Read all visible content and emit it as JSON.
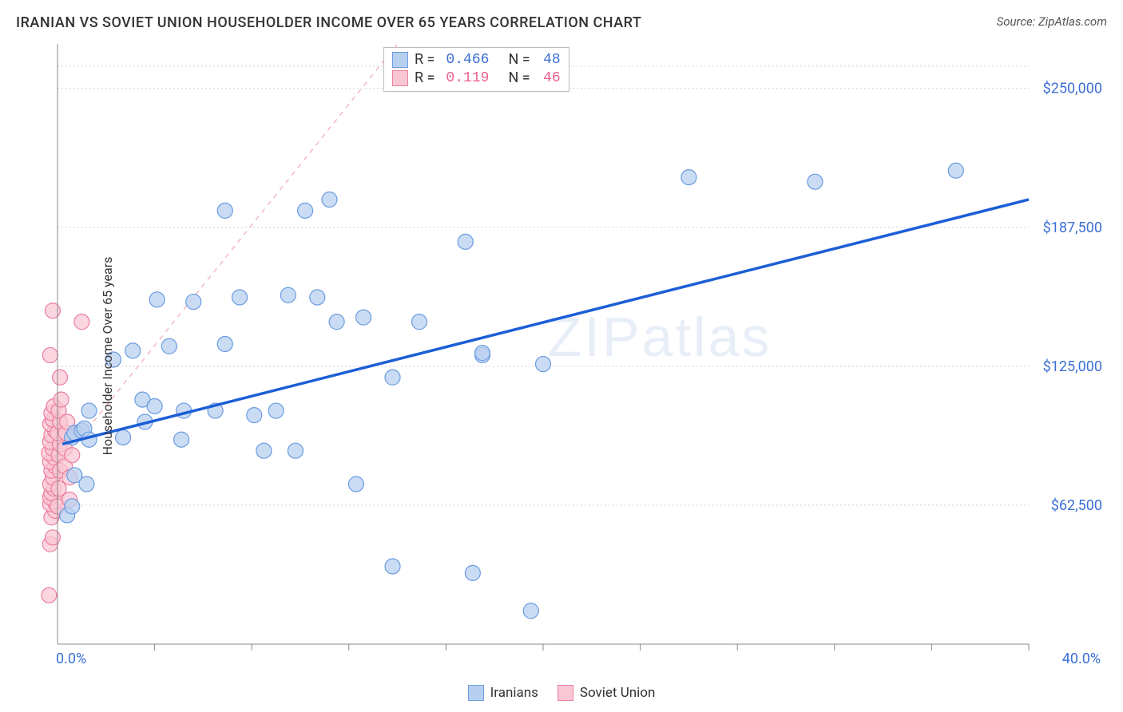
{
  "title": "IRANIAN VS SOVIET UNION HOUSEHOLDER INCOME OVER 65 YEARS CORRELATION CHART",
  "source_label": "Source: ZipAtlas.com",
  "watermark": "ZIPatlas",
  "y_axis_label": "Householder Income Over 65 years",
  "chart": {
    "type": "scatter",
    "xlim": [
      0,
      40
    ],
    "ylim": [
      0,
      270000
    ],
    "x_min_label": "0.0%",
    "x_max_label": "40.0%",
    "x_ticks": [
      4,
      8,
      12,
      16,
      20,
      24,
      28,
      32,
      36,
      40
    ],
    "y_gridlines": [
      62500,
      125000,
      187500,
      250000,
      260000
    ],
    "y_tick_labels": [
      {
        "v": 62500,
        "label": "$62,500"
      },
      {
        "v": 125000,
        "label": "$125,000"
      },
      {
        "v": 187500,
        "label": "$187,500"
      },
      {
        "v": 250000,
        "label": "$250,000"
      }
    ],
    "background_color": "#ffffff",
    "grid_color": "#d0d0d0",
    "marker_radius": 9.5,
    "series": {
      "blue": {
        "name": "Iranians",
        "fill": "#b8d0f0",
        "stroke": "#6a9be0",
        "R": "0.466",
        "N": "48",
        "trend": {
          "x1": 0.2,
          "y1": 90000,
          "x2": 40,
          "y2": 200000,
          "color": "#1b5ed6",
          "width": 3.5
        },
        "points": [
          [
            0.4,
            58000
          ],
          [
            0.6,
            62000
          ],
          [
            0.7,
            76000
          ],
          [
            0.6,
            93000
          ],
          [
            0.7,
            95000
          ],
          [
            1.0,
            96000
          ],
          [
            1.1,
            97000
          ],
          [
            1.3,
            92000
          ],
          [
            1.2,
            72000
          ],
          [
            1.3,
            105000
          ],
          [
            2.3,
            128000
          ],
          [
            2.7,
            93000
          ],
          [
            3.1,
            132000
          ],
          [
            3.6,
            100000
          ],
          [
            3.5,
            110000
          ],
          [
            4.0,
            107000
          ],
          [
            4.6,
            134000
          ],
          [
            4.1,
            155000
          ],
          [
            5.1,
            92000
          ],
          [
            5.2,
            105000
          ],
          [
            5.6,
            154000
          ],
          [
            6.5,
            105000
          ],
          [
            6.9,
            135000
          ],
          [
            6.9,
            195000
          ],
          [
            7.5,
            156000
          ],
          [
            8.1,
            103000
          ],
          [
            8.5,
            87000
          ],
          [
            9.0,
            105000
          ],
          [
            9.5,
            157000
          ],
          [
            9.8,
            87000
          ],
          [
            10.2,
            195000
          ],
          [
            10.7,
            156000
          ],
          [
            11.2,
            200000
          ],
          [
            11.5,
            145000
          ],
          [
            12.3,
            72000
          ],
          [
            12.6,
            147000
          ],
          [
            13.8,
            35000
          ],
          [
            13.8,
            120000
          ],
          [
            14.9,
            145000
          ],
          [
            16.8,
            181000
          ],
          [
            17.1,
            32000
          ],
          [
            17.5,
            130000
          ],
          [
            17.5,
            131000
          ],
          [
            19.5,
            15000
          ],
          [
            20.0,
            126000
          ],
          [
            26.0,
            210000
          ],
          [
            31.2,
            208000
          ],
          [
            37.0,
            213000
          ]
        ]
      },
      "pink": {
        "name": "Soviet Union",
        "fill": "#f9c7d4",
        "stroke": "#ec7ea0",
        "R": "0.119",
        "N": "46",
        "trend": {
          "x1": 0.0,
          "y1": 80000,
          "x2": 14,
          "y2": 270000,
          "color": "#f5b6c5",
          "width": 1.5,
          "dash": "6 6"
        },
        "points": [
          [
            -0.35,
            22000
          ],
          [
            -0.3,
            45000
          ],
          [
            -0.2,
            48000
          ],
          [
            -0.25,
            57000
          ],
          [
            -0.1,
            60000
          ],
          [
            -0.3,
            63000
          ],
          [
            -0.1,
            64000
          ],
          [
            -0.3,
            66000
          ],
          [
            -0.25,
            68000
          ],
          [
            -0.15,
            70000
          ],
          [
            -0.3,
            72000
          ],
          [
            -0.2,
            75000
          ],
          [
            -0.25,
            78000
          ],
          [
            -0.1,
            80000
          ],
          [
            -0.3,
            82000
          ],
          [
            -0.15,
            84000
          ],
          [
            -0.35,
            86000
          ],
          [
            -0.2,
            88000
          ],
          [
            -0.3,
            91000
          ],
          [
            -0.25,
            94000
          ],
          [
            -0.1,
            96000
          ],
          [
            -0.3,
            99000
          ],
          [
            -0.2,
            101000
          ],
          [
            -0.25,
            104000
          ],
          [
            -0.15,
            107000
          ],
          [
            -0.3,
            130000
          ],
          [
            -0.2,
            150000
          ],
          [
            0.0,
            62000
          ],
          [
            0.05,
            70000
          ],
          [
            0.1,
            78000
          ],
          [
            0.05,
            85000
          ],
          [
            0.1,
            90000
          ],
          [
            0.0,
            95000
          ],
          [
            0.1,
            100000
          ],
          [
            0.05,
            105000
          ],
          [
            0.15,
            110000
          ],
          [
            0.1,
            120000
          ],
          [
            0.3,
            80000
          ],
          [
            0.3,
            88000
          ],
          [
            0.35,
            95000
          ],
          [
            0.4,
            100000
          ],
          [
            0.5,
            65000
          ],
          [
            0.5,
            75000
          ],
          [
            0.6,
            85000
          ],
          [
            0.8,
            95000
          ],
          [
            1.0,
            145000
          ]
        ]
      }
    }
  },
  "stats_box": {
    "r_label": "R =",
    "n_label": "N ="
  },
  "legend": {
    "blue_label": "Iranians",
    "pink_label": "Soviet Union"
  }
}
